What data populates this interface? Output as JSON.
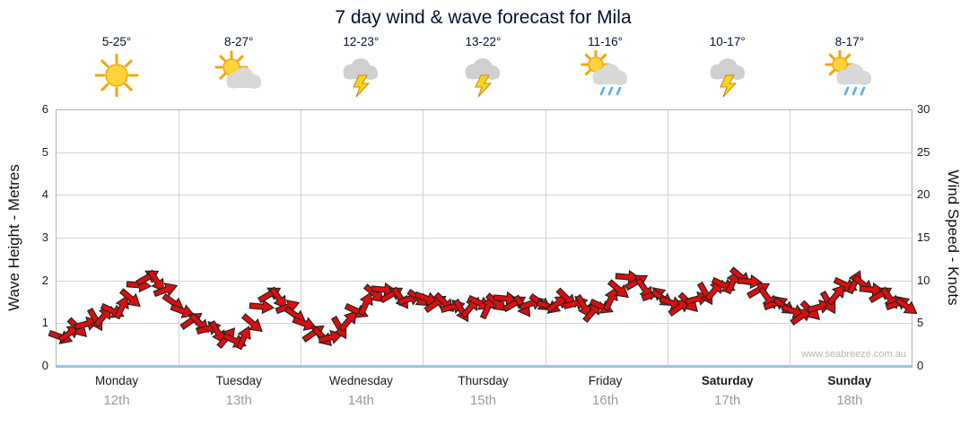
{
  "title": "7 day wind & wave forecast for Mila",
  "watermark": "www.seabreeze.com.au",
  "axes": {
    "left_label": "Wave Height - Metres",
    "right_label": "Wind Speed - Knots",
    "left_ticks": [
      "0",
      "1",
      "2",
      "3",
      "4",
      "5",
      "6"
    ],
    "right_ticks": [
      "0",
      "5",
      "10",
      "15",
      "20",
      "25",
      "30"
    ]
  },
  "colors": {
    "arrow": "#dd0e0e",
    "arrow_outline": "#222222",
    "grid": "#d2d2d2",
    "axis_bottom": "#8ecfe4",
    "title": "#001133",
    "date": "#9a9a9a"
  },
  "chart_data": {
    "type": "line",
    "title": "7 day wind & wave forecast for Mila",
    "ylabel_left": "Wave Height - Metres",
    "ylabel_right": "Wind Speed - Knots",
    "ylim_left": [
      0,
      6
    ],
    "ylim_right": [
      0,
      30
    ],
    "grid": true,
    "days": [
      {
        "name": "Monday",
        "date": "12th",
        "temp": "5-25°",
        "icon": "sunny",
        "bold": false
      },
      {
        "name": "Tuesday",
        "date": "13th",
        "temp": "8-27°",
        "icon": "sun-cloud",
        "bold": false
      },
      {
        "name": "Wednesday",
        "date": "14th",
        "temp": "12-23°",
        "icon": "storm",
        "bold": false
      },
      {
        "name": "Thursday",
        "date": "15th",
        "temp": "13-22°",
        "icon": "storm",
        "bold": false
      },
      {
        "name": "Friday",
        "date": "16th",
        "temp": "11-16°",
        "icon": "sun-rain",
        "bold": false
      },
      {
        "name": "Saturday",
        "date": "17th",
        "temp": "10-17°",
        "icon": "storm",
        "bold": true
      },
      {
        "name": "Sunday",
        "date": "18th",
        "temp": "8-17°",
        "icon": "sun-rain",
        "bold": true
      }
    ],
    "wind_knots": [
      3.5,
      4,
      4.5,
      5,
      5.5,
      6,
      6.5,
      7,
      8,
      9.5,
      10.5,
      10,
      9,
      7.5,
      6.5,
      5.5,
      5,
      4.5,
      4,
      3.5,
      3,
      3.5,
      5,
      7,
      8.5,
      8,
      7,
      6,
      5,
      4,
      3.5,
      3.5,
      4.5,
      5.5,
      6.5,
      7.5,
      8.5,
      9,
      8.5,
      8,
      8,
      8,
      8,
      7.5,
      7.5,
      7,
      6.5,
      7,
      7.5,
      7,
      7.5,
      8,
      7.5,
      7,
      7.5,
      7.5,
      7,
      7.5,
      8,
      7.5,
      7,
      6.5,
      7,
      8,
      9,
      10.5,
      10,
      9,
      8.5,
      8,
      7.5,
      7,
      7.5,
      8,
      8.5,
      9,
      9.5,
      10,
      10.5,
      10,
      9,
      8,
      7.5,
      7,
      6.5,
      6,
      6.5,
      7,
      7.5,
      8.5,
      9.5,
      10,
      9.5,
      9,
      8.5,
      8,
      7.5,
      7
    ],
    "wind_dir_deg": [
      20,
      -35,
      45,
      -15,
      60,
      -50,
      25,
      -65,
      40,
      5,
      -30,
      55,
      -20,
      35,
      20,
      -35,
      45,
      -15,
      60,
      -50,
      25,
      -65,
      40,
      5,
      -30,
      55,
      -20,
      35,
      20,
      -35,
      45,
      -15,
      60,
      -50,
      25,
      -65,
      40,
      5,
      -30,
      55,
      -20,
      35,
      20,
      -35,
      45,
      -15,
      60,
      -50,
      25,
      -65,
      40,
      5,
      -30,
      55,
      -20,
      35,
      20,
      -35,
      45,
      -15,
      60,
      -50,
      25,
      -65,
      40,
      5,
      -30,
      55,
      -20,
      35,
      20,
      -35,
      45,
      -15,
      60,
      -50,
      25,
      -65,
      40,
      5,
      -30,
      55,
      -20,
      35,
      20,
      -35,
      45,
      -15,
      60,
      -50,
      25,
      -65,
      40,
      5,
      -30,
      55,
      -20,
      35
    ]
  }
}
